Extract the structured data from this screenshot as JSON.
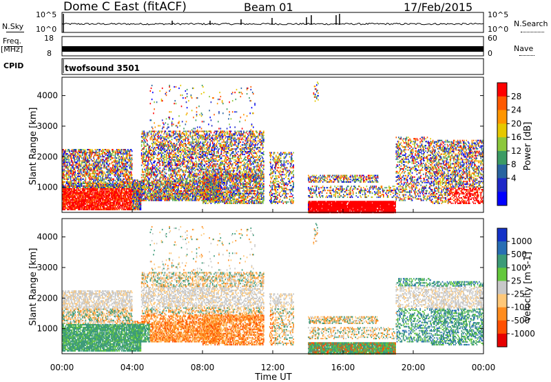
{
  "header": {
    "station": "Dome C East (fitACF)",
    "beam": "Beam 01",
    "date": "17/Feb/2015"
  },
  "panels": {
    "nsky_label": "N.Sky",
    "nsearch_label": "N.Search",
    "nsky_ticks": [
      "10^5",
      "10^0"
    ],
    "nsearch_ticks": [
      "10^5",
      "10^0"
    ],
    "freq_label_top": "Freq.",
    "freq_label_unit": "[MHz]",
    "freq_ticks": [
      "18",
      "8"
    ],
    "nave_label": "Nave",
    "nave_ticks": [
      "60",
      "0"
    ],
    "cpid_label": "CPID",
    "cpid_value": "twofsound 3501"
  },
  "chart_data": [
    {
      "type": "heatmap",
      "name": "power",
      "ylabel": "Slant Range [km]",
      "yticks": [
        "4000",
        "3000",
        "2000",
        "1000"
      ],
      "ylim": [
        180,
        4600
      ],
      "xlim": [
        0,
        24
      ],
      "colorbar_label": "Power [dB]",
      "colorbar_ticks": [
        "28",
        "24",
        "20",
        "16",
        "12",
        "8",
        "4"
      ],
      "colorbar_colors": [
        "#ff0000",
        "#ff5a00",
        "#ff9600",
        "#e6c800",
        "#8cc83c",
        "#3c9b64",
        "#2864a0",
        "#1e28c8",
        "#0000ff"
      ]
    },
    {
      "type": "heatmap",
      "name": "velocity",
      "ylabel": "Slant Range [km]",
      "yticks": [
        "4000",
        "3000",
        "2000",
        "1000"
      ],
      "ylim": [
        180,
        4600
      ],
      "xlim": [
        0,
        24
      ],
      "xlabel": "Time UT",
      "xticks": [
        "00:00",
        "04:00",
        "08:00",
        "12:00",
        "16:00",
        "20:00",
        "00:00"
      ],
      "colorbar_label": "Velocity [m s-1]",
      "colorbar_ticks": [
        "1000",
        "500",
        "100",
        "25",
        "-25",
        "-100",
        "-500",
        "-1000"
      ],
      "colorbar_colors": [
        "#1432c8",
        "#286eb4",
        "#3c9b78",
        "#64c83c",
        "#c8c8c8",
        "#ffc878",
        "#ff8c1e",
        "#ff5000",
        "#e60000"
      ]
    }
  ]
}
